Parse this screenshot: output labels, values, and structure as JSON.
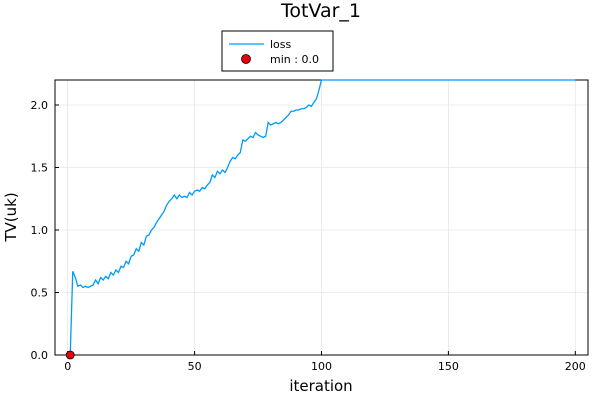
{
  "chart_data": {
    "type": "line",
    "title": "TotVar_1",
    "xlabel": "iteration",
    "ylabel": "TV(uk)",
    "xlim": [
      -5,
      205
    ],
    "ylim": [
      0,
      2.2
    ],
    "xticks": [
      0,
      50,
      100,
      150,
      200
    ],
    "xtick_labels": [
      "0",
      "50",
      "100",
      "150",
      "200"
    ],
    "yticks": [
      0,
      0.5,
      1.0,
      1.5,
      2.0
    ],
    "ytick_labels": [
      "0.0",
      "0.5",
      "1.0",
      "1.5",
      "2.0"
    ],
    "grid": true,
    "legend_position": "top-center",
    "series": [
      {
        "name": "loss",
        "kind": "line",
        "color": "#009AFA",
        "x": [
          0,
          1,
          2,
          3,
          4,
          5,
          6,
          7,
          8,
          9,
          10,
          11,
          12,
          13,
          14,
          15,
          16,
          17,
          18,
          19,
          20,
          21,
          22,
          23,
          24,
          25,
          26,
          27,
          28,
          29,
          30,
          31,
          32,
          33,
          34,
          35,
          36,
          37,
          38,
          39,
          40,
          41,
          42,
          43,
          44,
          45,
          46,
          47,
          48,
          49,
          50,
          51,
          52,
          53,
          54,
          55,
          56,
          57,
          58,
          59,
          60,
          61,
          62,
          63,
          64,
          65,
          66,
          67,
          68,
          69,
          70,
          71,
          72,
          73,
          74,
          75,
          76,
          77,
          78,
          79,
          80,
          81,
          82,
          83,
          84,
          85,
          86,
          87,
          88,
          89,
          90,
          91,
          92,
          93,
          94,
          95,
          96,
          97,
          98,
          99,
          100,
          101,
          110,
          120,
          130,
          140,
          150,
          160,
          170,
          180,
          190,
          200
        ],
        "y": [
          0.0,
          0.0,
          0.67,
          0.62,
          0.55,
          0.56,
          0.54,
          0.55,
          0.54,
          0.55,
          0.56,
          0.6,
          0.57,
          0.62,
          0.6,
          0.63,
          0.61,
          0.66,
          0.64,
          0.68,
          0.66,
          0.71,
          0.7,
          0.75,
          0.73,
          0.79,
          0.8,
          0.85,
          0.83,
          0.9,
          0.88,
          0.95,
          0.96,
          1.0,
          1.02,
          1.06,
          1.09,
          1.12,
          1.15,
          1.2,
          1.23,
          1.25,
          1.28,
          1.25,
          1.28,
          1.26,
          1.27,
          1.26,
          1.3,
          1.28,
          1.31,
          1.32,
          1.31,
          1.34,
          1.33,
          1.36,
          1.38,
          1.44,
          1.42,
          1.47,
          1.45,
          1.48,
          1.46,
          1.5,
          1.55,
          1.58,
          1.57,
          1.6,
          1.62,
          1.72,
          1.71,
          1.73,
          1.75,
          1.74,
          1.78,
          1.76,
          1.75,
          1.74,
          1.75,
          1.86,
          1.84,
          1.85,
          1.86,
          1.85,
          1.86,
          1.88,
          1.9,
          1.92,
          1.95,
          1.95,
          1.96,
          1.96,
          1.97,
          1.97,
          1.98,
          2.0,
          1.99,
          2.02,
          2.05,
          2.12,
          2.2,
          2.2,
          2.2,
          2.2,
          2.2,
          2.2,
          2.2,
          2.2,
          2.2,
          2.2,
          2.2,
          2.2
        ]
      },
      {
        "name": "min : 0.0",
        "kind": "scatter",
        "color": "#E8000B",
        "x": [
          1
        ],
        "y": [
          0.0
        ]
      }
    ]
  }
}
